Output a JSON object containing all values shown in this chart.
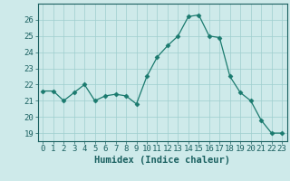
{
  "x": [
    0,
    1,
    2,
    3,
    4,
    5,
    6,
    7,
    8,
    9,
    10,
    11,
    12,
    13,
    14,
    15,
    16,
    17,
    18,
    19,
    20,
    21,
    22,
    23
  ],
  "y": [
    21.6,
    21.6,
    21.0,
    21.5,
    22.0,
    21.0,
    21.3,
    21.4,
    21.3,
    20.8,
    22.5,
    23.7,
    24.4,
    25.0,
    26.2,
    26.3,
    25.0,
    24.9,
    22.5,
    21.5,
    21.0,
    19.8,
    19.0,
    19.0
  ],
  "line_color": "#1a7a6e",
  "marker": "D",
  "marker_size": 2.5,
  "bg_color": "#ceeaea",
  "grid_color": "#9ecece",
  "axis_color": "#1a6060",
  "xlabel": "Humidex (Indice chaleur)",
  "ylabel": "",
  "title": "",
  "xlim": [
    -0.5,
    23.5
  ],
  "ylim": [
    18.5,
    27.0
  ],
  "yticks": [
    19,
    20,
    21,
    22,
    23,
    24,
    25,
    26
  ],
  "xticks": [
    0,
    1,
    2,
    3,
    4,
    5,
    6,
    7,
    8,
    9,
    10,
    11,
    12,
    13,
    14,
    15,
    16,
    17,
    18,
    19,
    20,
    21,
    22,
    23
  ],
  "tick_fontsize": 6.5,
  "label_fontsize": 7.5
}
